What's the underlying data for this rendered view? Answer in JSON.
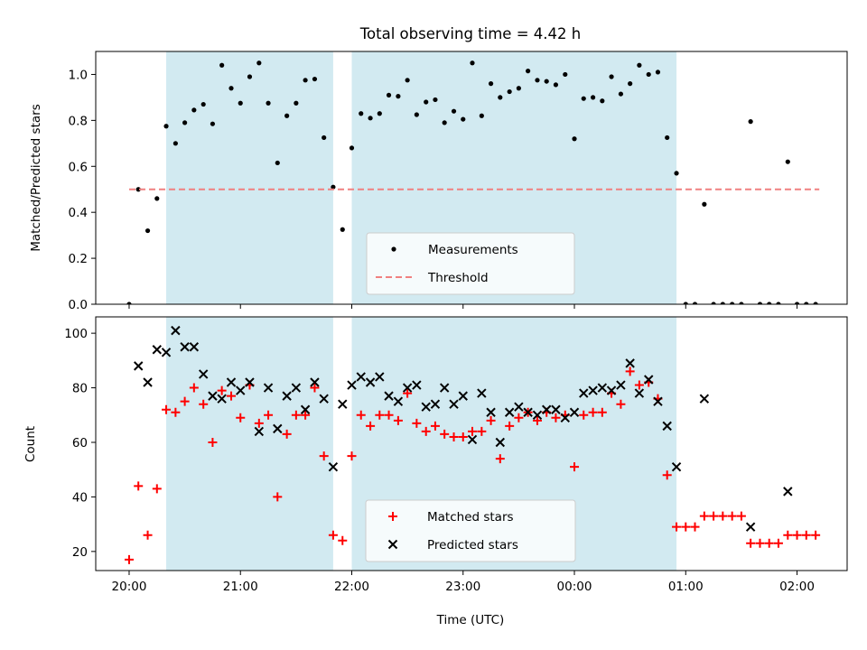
{
  "figure": {
    "title": "Total observing time = 4.42 h",
    "xlabel": "Time (UTC)"
  },
  "chart_data": [
    {
      "type": "scatter",
      "panel": "top",
      "ylabel": "Matched/Predicted stars",
      "x_unit": "hours since 20:00 UTC",
      "xlim": [
        -0.3,
        6.45
      ],
      "ylim": [
        0,
        1.1
      ],
      "yticks": [
        0.0,
        0.2,
        0.4,
        0.6,
        0.8,
        1.0
      ],
      "ytick_labels": [
        "0.0",
        "0.2",
        "0.4",
        "0.6",
        "0.8",
        "1.0"
      ],
      "legend_position": "lower center",
      "shaded_intervals": [
        [
          0.333,
          1.833
        ],
        [
          2.0,
          4.917
        ]
      ],
      "shade_color": "#add8e6",
      "series": [
        {
          "name": "Measurements",
          "marker": "dot",
          "color": "#000000",
          "x": [
            0.0,
            0.083,
            0.167,
            0.25,
            0.333,
            0.417,
            0.5,
            0.583,
            0.667,
            0.75,
            0.833,
            0.917,
            1.0,
            1.083,
            1.167,
            1.25,
            1.333,
            1.417,
            1.5,
            1.583,
            1.667,
            1.75,
            1.833,
            1.917,
            2.0,
            2.083,
            2.167,
            2.25,
            2.333,
            2.417,
            2.5,
            2.583,
            2.667,
            2.75,
            2.833,
            2.917,
            3.0,
            3.083,
            3.167,
            3.25,
            3.333,
            3.417,
            3.5,
            3.583,
            3.667,
            3.75,
            3.833,
            3.917,
            4.0,
            4.083,
            4.167,
            4.25,
            4.333,
            4.417,
            4.5,
            4.583,
            4.667,
            4.75,
            4.833,
            4.917,
            5.0,
            5.083,
            5.167,
            5.25,
            5.333,
            5.417,
            5.5,
            5.583,
            5.667,
            5.75,
            5.833,
            5.917,
            6.0,
            6.083,
            6.167
          ],
          "y": [
            0.0,
            0.5,
            0.32,
            0.46,
            0.775,
            0.7,
            0.79,
            0.845,
            0.87,
            0.785,
            1.04,
            0.94,
            0.875,
            0.99,
            1.05,
            0.875,
            0.615,
            0.82,
            0.875,
            0.975,
            0.98,
            0.725,
            0.51,
            0.325,
            0.68,
            0.83,
            0.81,
            0.83,
            0.91,
            0.905,
            0.975,
            0.825,
            0.88,
            0.89,
            0.79,
            0.84,
            0.805,
            1.05,
            0.82,
            0.96,
            0.9,
            0.925,
            0.94,
            1.015,
            0.975,
            0.97,
            0.955,
            1.0,
            0.72,
            0.895,
            0.9,
            0.885,
            0.99,
            0.915,
            0.96,
            1.04,
            1.0,
            1.01,
            0.725,
            0.57,
            0.0,
            0.0,
            0.435,
            0.0,
            0.0,
            0.0,
            0.0,
            0.795,
            0.0,
            0.0,
            0.0,
            0.62,
            0.0,
            0.0,
            0.0
          ]
        },
        {
          "name": "Threshold",
          "style": "dashed",
          "color": "#f08080",
          "x": [
            0.0,
            6.2
          ],
          "y": [
            0.5,
            0.5
          ]
        }
      ]
    },
    {
      "type": "scatter",
      "panel": "bottom",
      "ylabel": "Count",
      "x_unit": "hours since 20:00 UTC",
      "xlim": [
        -0.3,
        6.45
      ],
      "ylim": [
        13,
        106
      ],
      "yticks": [
        20,
        40,
        60,
        80,
        100
      ],
      "ytick_labels": [
        "20",
        "40",
        "60",
        "80",
        "100"
      ],
      "xticks": [
        0,
        1,
        2,
        3,
        4,
        5,
        6
      ],
      "xtick_labels": [
        "20:00",
        "21:00",
        "22:00",
        "23:00",
        "00:00",
        "01:00",
        "02:00"
      ],
      "legend_position": "lower center",
      "shaded_intervals": [
        [
          0.333,
          1.833
        ],
        [
          2.0,
          4.917
        ]
      ],
      "shade_color": "#add8e6",
      "series": [
        {
          "name": "Matched stars",
          "marker": "plus",
          "color": "#ff0000",
          "x": [
            0.0,
            0.083,
            0.167,
            0.25,
            0.333,
            0.417,
            0.5,
            0.583,
            0.667,
            0.75,
            0.833,
            0.917,
            1.0,
            1.083,
            1.167,
            1.25,
            1.333,
            1.417,
            1.5,
            1.583,
            1.667,
            1.75,
            1.833,
            1.917,
            2.0,
            2.083,
            2.167,
            2.25,
            2.333,
            2.417,
            2.5,
            2.583,
            2.667,
            2.75,
            2.833,
            2.917,
            3.0,
            3.083,
            3.167,
            3.25,
            3.333,
            3.417,
            3.5,
            3.583,
            3.667,
            3.75,
            3.833,
            3.917,
            4.0,
            4.083,
            4.167,
            4.25,
            4.333,
            4.417,
            4.5,
            4.583,
            4.667,
            4.75,
            4.833,
            4.917,
            5.0,
            5.083,
            5.167,
            5.25,
            5.333,
            5.417,
            5.5,
            5.583,
            5.667,
            5.75,
            5.833,
            5.917,
            6.0,
            6.083,
            6.167
          ],
          "y": [
            17,
            44,
            26,
            43,
            72,
            71,
            75,
            80,
            74,
            60,
            79,
            77,
            69,
            81,
            67,
            70,
            40,
            63,
            70,
            70,
            80,
            55,
            26,
            24,
            55,
            70,
            66,
            70,
            70,
            68,
            78,
            67,
            64,
            66,
            63,
            62,
            62,
            64,
            64,
            68,
            54,
            66,
            69,
            71,
            68,
            71,
            69,
            70,
            51,
            70,
            71,
            71,
            78,
            74,
            86,
            81,
            82,
            76,
            48,
            29,
            29,
            29,
            33,
            33,
            33,
            33,
            33,
            23,
            23,
            23,
            23,
            26,
            26,
            26,
            26
          ]
        },
        {
          "name": "Predicted stars",
          "marker": "x",
          "color": "#000000",
          "x": [
            0.083,
            0.167,
            0.25,
            0.333,
            0.417,
            0.5,
            0.583,
            0.667,
            0.75,
            0.833,
            0.917,
            1.0,
            1.083,
            1.167,
            1.25,
            1.333,
            1.417,
            1.5,
            1.583,
            1.667,
            1.75,
            1.833,
            1.917,
            2.0,
            2.083,
            2.167,
            2.25,
            2.333,
            2.417,
            2.5,
            2.583,
            2.667,
            2.75,
            2.833,
            2.917,
            3.0,
            3.083,
            3.167,
            3.25,
            3.333,
            3.417,
            3.5,
            3.583,
            3.667,
            3.75,
            3.833,
            3.917,
            4.0,
            4.083,
            4.167,
            4.25,
            4.333,
            4.417,
            4.5,
            4.583,
            4.667,
            4.75,
            4.833,
            4.917,
            5.167,
            5.583,
            5.917
          ],
          "y": [
            88,
            82,
            94,
            93,
            101,
            95,
            95,
            85,
            77,
            76,
            82,
            79,
            82,
            64,
            80,
            65,
            77,
            80,
            72,
            82,
            76,
            51,
            74,
            81,
            84,
            82,
            84,
            77,
            75,
            80,
            81,
            73,
            74,
            80,
            74,
            77,
            61,
            78,
            71,
            60,
            71,
            73,
            71,
            70,
            72,
            72,
            69,
            71,
            78,
            79,
            80,
            79,
            81,
            89,
            78,
            83,
            75,
            66,
            51,
            76,
            29,
            42
          ]
        }
      ]
    }
  ]
}
